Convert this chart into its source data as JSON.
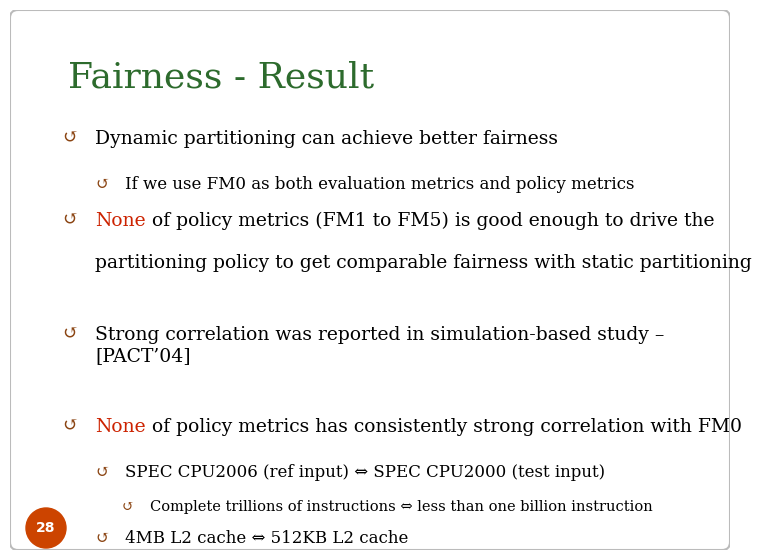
{
  "title": "Fairness - Result",
  "title_color": "#2d6b2d",
  "title_fontsize": 26,
  "background_color": "#ffffff",
  "text_color": "#000000",
  "none_color": "#cc2200",
  "bullet_color": "#8B4513",
  "page_number": "28",
  "page_bg": "#cc4400",
  "page_text_color": "#ffffff",
  "content": [
    {
      "level": 1,
      "text": "Dynamic partitioning can achieve better fairness",
      "color": "#000000"
    },
    {
      "level": 2,
      "text": "If we use FM0 as both evaluation metrics and policy metrics",
      "color": "#000000"
    },
    {
      "level": 1,
      "text_parts": [
        {
          "text": "None",
          "color": "#cc2200"
        },
        {
          "text": " of policy metrics (FM1 to FM5) is good enough to drive the",
          "color": "#000000"
        },
        {
          "text": "\npartitioning policy to get comparable fairness with static partitioning",
          "color": "#000000",
          "indent": true
        }
      ]
    },
    {
      "level": 0
    },
    {
      "level": 1,
      "text": "Strong correlation was reported in simulation-based study –\n[PACT’04]",
      "color": "#000000"
    },
    {
      "level": 1,
      "text_parts": [
        {
          "text": "None",
          "color": "#cc2200"
        },
        {
          "text": " of policy metrics has consistently strong correlation with FM0",
          "color": "#000000"
        }
      ]
    },
    {
      "level": 2,
      "text": "SPEC CPU2006 (ref input) ⇔ SPEC CPU2000 (test input)",
      "color": "#000000"
    },
    {
      "level": 3,
      "text": "Complete trillions of instructions ⇔ less than one billion instruction",
      "color": "#000000"
    },
    {
      "level": 2,
      "text": "4MB L2 cache ⇔ 512KB L2 cache",
      "color": "#000000"
    }
  ]
}
